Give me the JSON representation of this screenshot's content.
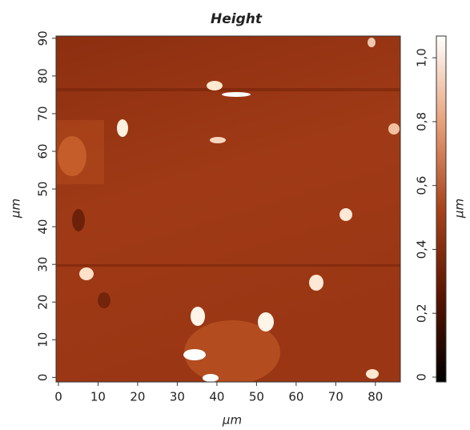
{
  "chart_data": {
    "type": "heatmap",
    "title": "Height",
    "xlabel": "µm",
    "ylabel": "µm",
    "xlim": [
      -0.6,
      86.3
    ],
    "ylim": [
      -1.2,
      90.6
    ],
    "xticks": [
      0,
      10,
      20,
      30,
      40,
      50,
      60,
      70,
      80
    ],
    "yticks": [
      0,
      10,
      20,
      30,
      40,
      50,
      60,
      70,
      80,
      90
    ],
    "colorbar": {
      "label": "µm",
      "lim": [
        -0.015,
        1.068
      ],
      "ticks": [
        0,
        {
          "value": 0.2,
          "label": "0,2"
        },
        {
          "value": 0.4,
          "label": "0,4"
        },
        {
          "value": 0.6,
          "label": "0,6"
        },
        {
          "value": 0.8,
          "label": "0,8"
        },
        {
          "value": 1.0,
          "label": "1,0"
        }
      ],
      "colors": [
        "#000000",
        "#5a1400",
        "#a8421a",
        "#e8a078",
        "#ffffff"
      ]
    }
  }
}
